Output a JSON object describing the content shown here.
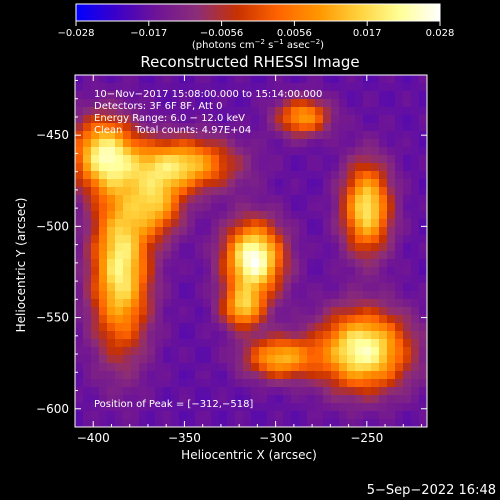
{
  "chart_data": {
    "type": "heatmap",
    "title": "Reconstructed RHESSI Image",
    "xlabel": "Heliocentric X (arcsec)",
    "ylabel": "Heliocentric Y (arcsec)",
    "xlim": [
      -410,
      -217
    ],
    "ylim": [
      -610,
      -417
    ],
    "x_ticks": [
      -400,
      -350,
      -300,
      -250
    ],
    "x_tick_labels": [
      "−400",
      "−350",
      "−300",
      "−250"
    ],
    "y_ticks": [
      -450,
      -500,
      -550,
      -600
    ],
    "y_tick_labels": [
      "−450",
      "−500",
      "−550",
      "−600"
    ],
    "colorbar": {
      "range": [
        -0.028,
        0.028
      ],
      "tick_labels": [
        "−0.028",
        "−0.017",
        "−0.0056",
        "0.0056",
        "0.017",
        "0.028"
      ],
      "unit_prefix": "(photons cm",
      "unit_exp1": "−2",
      "unit_mid": " s",
      "unit_exp2": "−1",
      "unit_mid2": " asec",
      "unit_exp3": "−2",
      "unit_suffix": ")"
    },
    "annotations": [
      "10−Nov−2017 15:08:00.000 to 15:14:00.000",
      "Detectors: 3F 6F 8F, Att 0",
      "Energy Range: 6.0 − 12.0 keV",
      "Clean    Total counts: 4.97E+04"
    ],
    "peak_label": "Position of Peak = [−312,−518]",
    "peak": [
      -312,
      -518
    ],
    "sources": [
      {
        "x": -312,
        "y": -518,
        "sx": 11,
        "sy": 14,
        "amp": 0.028
      },
      {
        "x": -252,
        "y": -568,
        "sx": 17,
        "sy": 15,
        "amp": 0.024
      },
      {
        "x": -250,
        "y": -490,
        "sx": 9,
        "sy": 17,
        "amp": 0.019
      },
      {
        "x": -385,
        "y": -522,
        "sx": 11,
        "sy": 32,
        "amp": 0.021
      },
      {
        "x": -352,
        "y": -466,
        "sx": 20,
        "sy": 10,
        "amp": 0.016
      },
      {
        "x": -395,
        "y": -460,
        "sx": 12,
        "sy": 14,
        "amp": 0.017
      },
      {
        "x": -298,
        "y": -572,
        "sx": 13,
        "sy": 8,
        "amp": 0.012
      },
      {
        "x": -285,
        "y": -440,
        "sx": 10,
        "sy": 7,
        "amp": 0.01
      },
      {
        "x": -318,
        "y": -545,
        "sx": 8,
        "sy": 8,
        "amp": 0.01
      },
      {
        "x": -365,
        "y": -488,
        "sx": 10,
        "sy": 12,
        "amp": 0.009
      }
    ],
    "background_level": -0.017,
    "palette": [
      "#0000ff",
      "#3c00c8",
      "#6e1496",
      "#8c2d78",
      "#c83200",
      "#ff6400",
      "#ff9600",
      "#ffd23c",
      "#ffff96",
      "#ffffff"
    ]
  },
  "timestamp": "5−Sep−2022 16:48"
}
